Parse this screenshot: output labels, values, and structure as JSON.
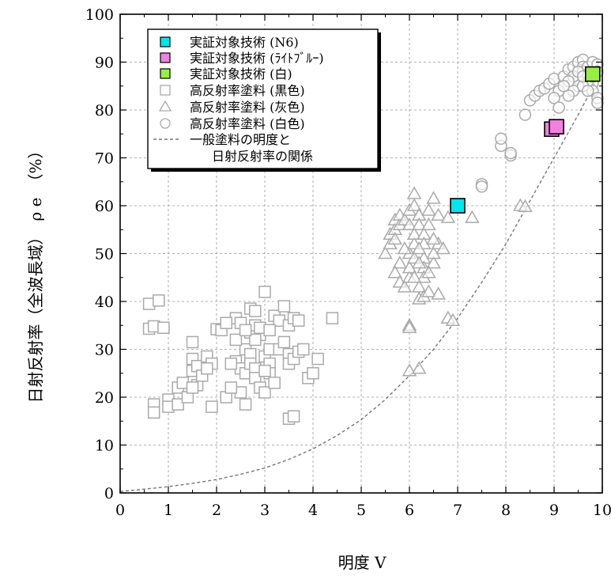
{
  "chart_data": {
    "type": "scatter",
    "xlabel": "明度 V",
    "ylabel": "日射反射率（全波長域）　ρ e　（%）",
    "xlim": [
      0,
      10
    ],
    "ylim": [
      0,
      100
    ],
    "xticks": [
      "0",
      "1",
      "2",
      "3",
      "4",
      "5",
      "6",
      "7",
      "8",
      "9",
      "10"
    ],
    "yticks": [
      "0",
      "10",
      "20",
      "30",
      "40",
      "50",
      "60",
      "70",
      "80",
      "90",
      "100"
    ],
    "grid": true,
    "legend_position": "top-left",
    "legend": [
      "実証対象技術 (N6)",
      "実証対象技術 (ﾗｲﾄﾌﾞﾙｰ)",
      "実証対象技術 (白)",
      "高反射率塗料 (黒色)",
      "高反射率塗料 (灰色)",
      "高反射率塗料 (白色)",
      "一般塗料の明度と",
      "日射反射率の関係"
    ],
    "series": [
      {
        "name": "実証対象技術 (N6)",
        "marker": "square-filled",
        "color": "#00e5ee",
        "points": [
          [
            7.0,
            60.0
          ]
        ]
      },
      {
        "name": "実証対象技術 (ﾗｲﾄﾌﾞﾙｰ)",
        "marker": "square-filled",
        "color": "#ee82dd",
        "points": [
          [
            8.95,
            76.0
          ],
          [
            9.05,
            76.5
          ]
        ]
      },
      {
        "name": "実証対象技術 (白)",
        "marker": "square-filled",
        "color": "#99ee44",
        "points": [
          [
            9.8,
            87.5
          ]
        ]
      },
      {
        "name": "高反射率塗料 (黒色)",
        "marker": "square-open",
        "color": "#aaaaaa",
        "points": [
          [
            0.6,
            39.5
          ],
          [
            0.8,
            40.2
          ],
          [
            0.6,
            34.3
          ],
          [
            0.7,
            34.8
          ],
          [
            0.9,
            34.5
          ],
          [
            0.7,
            18.5
          ],
          [
            0.7,
            16.8
          ],
          [
            1.0,
            19.5
          ],
          [
            1.0,
            18.0
          ],
          [
            1.2,
            22.0
          ],
          [
            1.2,
            18.5
          ],
          [
            1.4,
            20.0
          ],
          [
            1.3,
            23.0
          ],
          [
            1.5,
            31.5
          ],
          [
            1.5,
            28.0
          ],
          [
            1.5,
            25.5
          ],
          [
            1.6,
            26.5
          ],
          [
            1.6,
            22.5
          ],
          [
            1.5,
            22.0
          ],
          [
            1.7,
            24.5
          ],
          [
            1.8,
            28.5
          ],
          [
            1.9,
            27.0
          ],
          [
            1.8,
            26.0
          ],
          [
            2.0,
            34.2
          ],
          [
            2.1,
            34.0
          ],
          [
            1.9,
            18.0
          ],
          [
            2.2,
            20.0
          ],
          [
            2.4,
            36.5
          ],
          [
            2.5,
            35.5
          ],
          [
            2.4,
            27.5
          ],
          [
            2.5,
            26.0
          ],
          [
            2.6,
            25.0
          ],
          [
            2.7,
            33.5
          ],
          [
            2.7,
            38.5
          ],
          [
            2.8,
            38.0
          ],
          [
            2.8,
            35.0
          ],
          [
            2.9,
            33.0
          ],
          [
            3.0,
            42.0
          ],
          [
            2.6,
            30.0
          ],
          [
            2.7,
            29.0
          ],
          [
            2.7,
            27.0
          ],
          [
            2.8,
            26.0
          ],
          [
            2.8,
            24.0
          ],
          [
            2.9,
            22.0
          ],
          [
            3.0,
            28.5
          ],
          [
            3.1,
            30.0
          ],
          [
            3.1,
            27.0
          ],
          [
            3.1,
            25.0
          ],
          [
            3.0,
            21.0
          ],
          [
            3.2,
            37.0
          ],
          [
            3.3,
            36.0
          ],
          [
            3.4,
            39.0
          ],
          [
            3.5,
            35.0
          ],
          [
            3.6,
            36.5
          ],
          [
            3.7,
            36.0
          ],
          [
            3.3,
            30.0
          ],
          [
            3.4,
            31.5
          ],
          [
            3.5,
            29.0
          ],
          [
            3.5,
            27.0
          ],
          [
            3.6,
            28.0
          ],
          [
            3.7,
            29.5
          ],
          [
            3.8,
            30.0
          ],
          [
            3.2,
            23.0
          ],
          [
            3.5,
            15.5
          ],
          [
            3.6,
            16.0
          ],
          [
            3.9,
            24.0
          ],
          [
            4.0,
            25.0
          ],
          [
            4.1,
            28.0
          ],
          [
            4.4,
            36.5
          ],
          [
            2.6,
            18.5
          ],
          [
            2.5,
            21.0
          ],
          [
            2.3,
            27.0
          ],
          [
            2.2,
            35.5
          ],
          [
            2.9,
            34.5
          ],
          [
            2.8,
            32.0
          ],
          [
            2.4,
            32.0
          ],
          [
            2.6,
            34.0
          ],
          [
            3.1,
            34.0
          ],
          [
            2.3,
            22.0
          ],
          [
            3.0,
            25.5
          ]
        ]
      },
      {
        "name": "高反射率塗料 (灰色)",
        "marker": "triangle-open",
        "color": "#aaaaaa",
        "points": [
          [
            5.5,
            50.0
          ],
          [
            5.6,
            52.0
          ],
          [
            5.6,
            54.0
          ],
          [
            5.7,
            55.0
          ],
          [
            5.7,
            57.0
          ],
          [
            5.8,
            56.0
          ],
          [
            5.8,
            58.0
          ],
          [
            5.9,
            57.0
          ],
          [
            5.8,
            48.0
          ],
          [
            5.7,
            46.0
          ],
          [
            5.8,
            44.0
          ],
          [
            5.9,
            43.0
          ],
          [
            6.0,
            45.0
          ],
          [
            6.0,
            47.0
          ],
          [
            6.0,
            50.0
          ],
          [
            6.1,
            52.0
          ],
          [
            6.1,
            54.0
          ],
          [
            6.0,
            56.0
          ],
          [
            6.0,
            59.0
          ],
          [
            6.1,
            62.5
          ],
          [
            6.1,
            60.0
          ],
          [
            6.2,
            58.0
          ],
          [
            6.2,
            56.0
          ],
          [
            6.3,
            54.0
          ],
          [
            6.3,
            52.0
          ],
          [
            6.3,
            49.0
          ],
          [
            6.3,
            47.0
          ],
          [
            6.3,
            45.0
          ],
          [
            6.2,
            43.0
          ],
          [
            6.2,
            40.5
          ],
          [
            6.3,
            41.0
          ],
          [
            6.4,
            42.0
          ],
          [
            6.5,
            48.0
          ],
          [
            6.5,
            50.0
          ],
          [
            6.4,
            56.0
          ],
          [
            6.4,
            59.0
          ],
          [
            6.5,
            61.5
          ],
          [
            6.6,
            58.0
          ],
          [
            6.6,
            52.0
          ],
          [
            6.6,
            41.5
          ],
          [
            6.7,
            51.0
          ],
          [
            6.8,
            57.5
          ],
          [
            6.0,
            35.0
          ],
          [
            6.0,
            34.5
          ],
          [
            6.0,
            25.5
          ],
          [
            6.2,
            26.0
          ],
          [
            6.8,
            36.5
          ],
          [
            6.9,
            36.0
          ],
          [
            7.3,
            57.5
          ],
          [
            8.3,
            60.0
          ],
          [
            8.4,
            59.8
          ],
          [
            5.9,
            51.0
          ],
          [
            6.1,
            49.0
          ],
          [
            6.2,
            48.0
          ],
          [
            6.4,
            46.0
          ],
          [
            5.7,
            53.0
          ],
          [
            6.5,
            53.0
          ],
          [
            6.2,
            51.0
          ],
          [
            6.1,
            45.0
          ]
        ]
      },
      {
        "name": "高反射率塗料 (白色)",
        "marker": "circle-open",
        "color": "#aaaaaa",
        "points": [
          [
            7.5,
            64.5
          ],
          [
            7.5,
            64.0
          ],
          [
            7.9,
            72.5
          ],
          [
            7.9,
            74.0
          ],
          [
            8.1,
            70.5
          ],
          [
            8.1,
            71.0
          ],
          [
            8.4,
            79.0
          ],
          [
            8.5,
            82.0
          ],
          [
            8.6,
            83.0
          ],
          [
            8.7,
            84.0
          ],
          [
            8.8,
            84.5
          ],
          [
            8.9,
            85.5
          ],
          [
            9.0,
            86.5
          ],
          [
            9.1,
            84.0
          ],
          [
            9.2,
            87.0
          ],
          [
            9.3,
            88.5
          ],
          [
            9.4,
            89.0
          ],
          [
            9.5,
            90.0
          ],
          [
            9.6,
            90.5
          ],
          [
            9.6,
            89.0
          ],
          [
            9.6,
            88.0
          ],
          [
            9.5,
            86.5
          ],
          [
            9.5,
            85.0
          ],
          [
            9.4,
            84.0
          ],
          [
            9.3,
            83.0
          ],
          [
            9.7,
            89.0
          ],
          [
            9.8,
            90.0
          ],
          [
            9.9,
            89.5
          ],
          [
            9.9,
            88.0
          ],
          [
            9.8,
            85.5
          ],
          [
            9.8,
            84.0
          ],
          [
            9.9,
            82.5
          ],
          [
            9.9,
            81.5
          ],
          [
            9.7,
            86.0
          ],
          [
            9.6,
            85.0
          ],
          [
            9.7,
            87.5
          ],
          [
            9.4,
            87.0
          ],
          [
            9.5,
            88.0
          ],
          [
            9.6,
            87.0
          ],
          [
            9.8,
            87.0
          ],
          [
            9.7,
            84.0
          ],
          [
            9.3,
            86.0
          ],
          [
            9.2,
            85.0
          ],
          [
            9.0,
            82.5
          ],
          [
            9.1,
            80.5
          ]
        ]
      }
    ],
    "reference_curve": {
      "name": "一般塗料の明度と日射反射率の関係",
      "style": "dashed",
      "color": "#777777",
      "points": [
        [
          0,
          0.3
        ],
        [
          0.5,
          0.8
        ],
        [
          1,
          1.3
        ],
        [
          1.5,
          2.0
        ],
        [
          2,
          2.8
        ],
        [
          2.5,
          3.9
        ],
        [
          3,
          5.2
        ],
        [
          3.5,
          7.0
        ],
        [
          4,
          9.2
        ],
        [
          4.5,
          12.0
        ],
        [
          5,
          15.3
        ],
        [
          5.5,
          19.5
        ],
        [
          6,
          24.5
        ],
        [
          6.5,
          30.0
        ],
        [
          7,
          36.5
        ],
        [
          7.5,
          44.0
        ],
        [
          8,
          52.0
        ],
        [
          8.5,
          61.0
        ],
        [
          9,
          70.0
        ],
        [
          9.5,
          79.0
        ],
        [
          10,
          88.5
        ]
      ]
    }
  }
}
